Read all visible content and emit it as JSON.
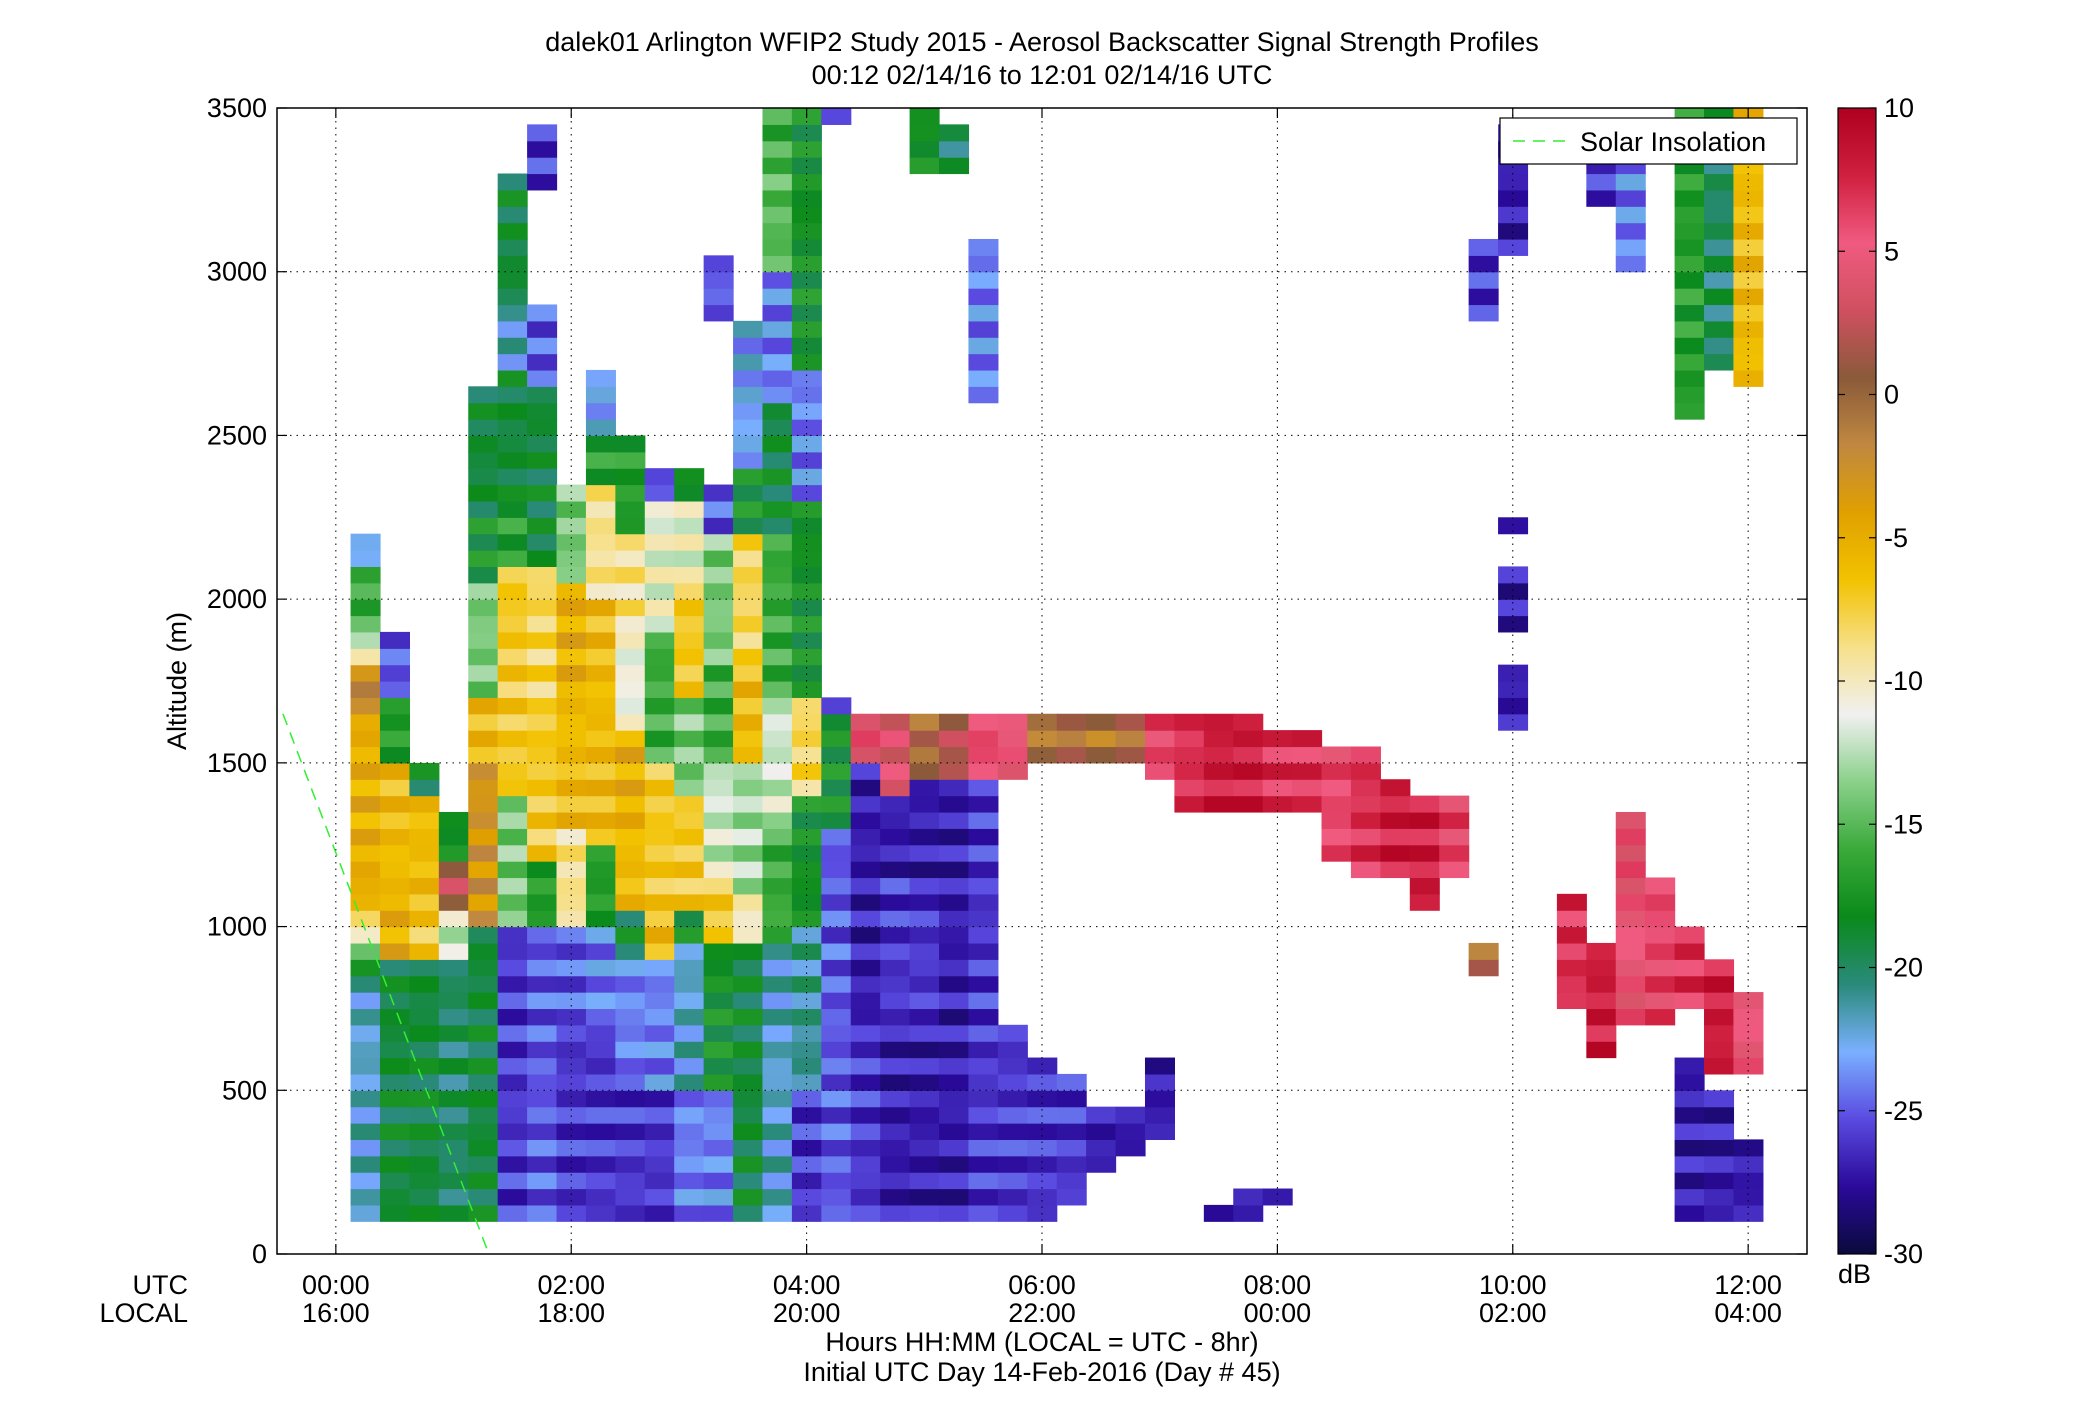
{
  "chart_data": {
    "type": "heatmap",
    "title": "dalek01 Arlington WFIP2 Study 2015 - Aerosol Backscatter Signal Strength Profiles",
    "subtitle": "00:12 02/14/16 to 12:01 02/14/16  UTC",
    "ylabel": "Altitude (m)",
    "xlabel": "Hours HH:MM  (LOCAL = UTC - 8hr)",
    "xlabel2": "Initial UTC Day 14-Feb-2016 (Day # 45)",
    "x_row_labels": [
      "UTC",
      "LOCAL"
    ],
    "ylim": [
      0,
      3500
    ],
    "xlim_hours": [
      -0.5,
      12.5
    ],
    "y_ticks": [
      0,
      500,
      1000,
      1500,
      2000,
      2500,
      3000,
      3500
    ],
    "x_ticks_hours": [
      0,
      2,
      4,
      6,
      8,
      10,
      12
    ],
    "x_tick_labels_utc": [
      "00:00",
      "02:00",
      "04:00",
      "06:00",
      "08:00",
      "10:00",
      "12:00"
    ],
    "x_tick_labels_local": [
      "16:00",
      "18:00",
      "20:00",
      "22:00",
      "00:00",
      "02:00",
      "04:00"
    ],
    "grid": true,
    "legend": {
      "entries": [
        "Solar Insolation"
      ],
      "placement": "top-right"
    },
    "colorbar": {
      "range": [
        -30,
        10
      ],
      "ticks": [
        10,
        5,
        0,
        -5,
        -10,
        -15,
        -20,
        -25,
        -30
      ],
      "unit": "dB",
      "colors": [
        "#0a0a3c",
        "#2a0a9a",
        "#5a4ae0",
        "#7ab0ff",
        "#2a8a7a",
        "#0a8a1a",
        "#3aaa3a",
        "#8ad08a",
        "#f0f0f0",
        "#f7e08a",
        "#f2c200",
        "#e0a000",
        "#c08840",
        "#8a5a3a",
        "#d05060",
        "#f05a80",
        "#d02040",
        "#b00020"
      ]
    },
    "solar_insolation": {
      "x_hours": [
        -0.45,
        1.3
      ],
      "y_m": [
        1650,
        0
      ]
    },
    "cell_size": {
      "dx_hours": 0.25,
      "dy_m": 50
    },
    "columns": [
      {
        "t": 0.25,
        "segs": [
          [
            100,
            850,
            -22
          ],
          [
            850,
            950,
            -16
          ],
          [
            950,
            1050,
            -9
          ],
          [
            1050,
            1650,
            -5
          ],
          [
            1650,
            1800,
            -2
          ],
          [
            1800,
            1900,
            -11
          ],
          [
            1900,
            2100,
            -16
          ],
          [
            2100,
            2200,
            -23
          ]
        ]
      },
      {
        "t": 0.5,
        "segs": [
          [
            100,
            900,
            -19
          ],
          [
            900,
            1100,
            -5
          ],
          [
            1100,
            1500,
            -6
          ],
          [
            1500,
            1700,
            -17
          ],
          [
            1700,
            1900,
            -25
          ]
        ]
      },
      {
        "t": 0.75,
        "segs": [
          [
            100,
            900,
            -19
          ],
          [
            900,
            1050,
            -7
          ],
          [
            1050,
            1400,
            -6
          ],
          [
            1400,
            1500,
            -19
          ]
        ]
      },
      {
        "t": 1.0,
        "segs": [
          [
            100,
            900,
            -20
          ],
          [
            900,
            1050,
            -12
          ],
          [
            1050,
            1200,
            2
          ],
          [
            1200,
            1350,
            -18
          ]
        ]
      },
      {
        "t": 1.25,
        "segs": [
          [
            100,
            1000,
            -19
          ],
          [
            1000,
            1500,
            -3
          ],
          [
            1500,
            1700,
            -6
          ],
          [
            1700,
            2050,
            -14
          ],
          [
            2050,
            2250,
            -18
          ],
          [
            2250,
            2650,
            -19
          ]
        ]
      },
      {
        "t": 1.5,
        "segs": [
          [
            100,
            1000,
            -26
          ],
          [
            1000,
            1400,
            -14
          ],
          [
            1400,
            1750,
            -7
          ],
          [
            1750,
            2100,
            -7
          ],
          [
            2100,
            2300,
            -17
          ],
          [
            2300,
            2700,
            -19
          ],
          [
            2700,
            2900,
            -22
          ],
          [
            2900,
            3300,
            -19
          ]
        ]
      },
      {
        "t": 1.75,
        "segs": [
          [
            100,
            1000,
            -25
          ],
          [
            1000,
            1200,
            -17
          ],
          [
            1200,
            1650,
            -7
          ],
          [
            1650,
            2100,
            -8
          ],
          [
            2100,
            2650,
            -19
          ],
          [
            2650,
            2900,
            -25
          ],
          [
            3250,
            3450,
            -26
          ]
        ]
      },
      {
        "t": 2.0,
        "segs": [
          [
            100,
            700,
            -26
          ],
          [
            700,
            1000,
            -25
          ],
          [
            1000,
            1300,
            -9
          ],
          [
            1300,
            1700,
            -6
          ],
          [
            1700,
            2050,
            -5
          ],
          [
            2050,
            2350,
            -14
          ]
        ]
      },
      {
        "t": 2.25,
        "segs": [
          [
            100,
            700,
            -26
          ],
          [
            700,
            1000,
            -24
          ],
          [
            1000,
            1250,
            -17
          ],
          [
            1250,
            2000,
            -6
          ],
          [
            2000,
            2350,
            -9
          ],
          [
            2350,
            2500,
            -17
          ],
          [
            2500,
            2700,
            -23
          ]
        ]
      },
      {
        "t": 2.5,
        "segs": [
          [
            100,
            550,
            -26
          ],
          [
            550,
            900,
            -24
          ],
          [
            900,
            1050,
            -19
          ],
          [
            1050,
            1300,
            -6
          ],
          [
            1300,
            1600,
            -5
          ],
          [
            1600,
            1900,
            -11
          ],
          [
            1900,
            2200,
            -9
          ],
          [
            2200,
            2500,
            -17
          ]
        ]
      },
      {
        "t": 2.75,
        "segs": [
          [
            100,
            500,
            -26
          ],
          [
            500,
            900,
            -24
          ],
          [
            900,
            1050,
            -6
          ],
          [
            1050,
            1500,
            -7
          ],
          [
            1500,
            1900,
            -16
          ],
          [
            1900,
            2300,
            -11
          ],
          [
            2300,
            2400,
            -25
          ]
        ]
      },
      {
        "t": 3.0,
        "segs": [
          [
            100,
            500,
            -24
          ],
          [
            500,
            950,
            -22
          ],
          [
            950,
            1050,
            -18
          ],
          [
            1050,
            1400,
            -7
          ],
          [
            1400,
            1700,
            -14
          ],
          [
            1700,
            2050,
            -7
          ],
          [
            2050,
            2300,
            -11
          ],
          [
            2300,
            2400,
            -18
          ]
        ]
      },
      {
        "t": 3.25,
        "segs": [
          [
            100,
            500,
            -24
          ],
          [
            500,
            950,
            -18
          ],
          [
            950,
            1150,
            -7
          ],
          [
            1150,
            1500,
            -12
          ],
          [
            1500,
            1800,
            -16
          ],
          [
            1800,
            2200,
            -14
          ],
          [
            2200,
            2350,
            -25
          ],
          [
            2850,
            3050,
            -25
          ]
        ]
      },
      {
        "t": 3.5,
        "segs": [
          [
            100,
            500,
            -19
          ],
          [
            500,
            950,
            -19
          ],
          [
            950,
            1100,
            -10
          ],
          [
            1100,
            1500,
            -13
          ],
          [
            1500,
            1800,
            -6
          ],
          [
            1800,
            2200,
            -8
          ],
          [
            2200,
            2400,
            -18
          ],
          [
            2400,
            2850,
            -23
          ]
        ]
      },
      {
        "t": 3.75,
        "segs": [
          [
            100,
            500,
            -22
          ],
          [
            500,
            950,
            -22
          ],
          [
            950,
            1300,
            -16
          ],
          [
            1300,
            1700,
            -12
          ],
          [
            1700,
            2200,
            -16
          ],
          [
            2200,
            2600,
            -19
          ],
          [
            2600,
            3000,
            -24
          ],
          [
            3000,
            3350,
            -15
          ],
          [
            3350,
            3500,
            -16
          ]
        ]
      },
      {
        "t": 4.0,
        "segs": [
          [
            100,
            500,
            -26
          ],
          [
            500,
            1000,
            -21
          ],
          [
            1000,
            1400,
            -18
          ],
          [
            1400,
            1700,
            -8
          ],
          [
            1700,
            2300,
            -18
          ],
          [
            2300,
            2700,
            -24
          ],
          [
            2700,
            3500,
            -18
          ]
        ]
      },
      {
        "t": 4.25,
        "segs": [
          [
            100,
            1300,
            -25
          ],
          [
            1300,
            1650,
            -18
          ],
          [
            1650,
            1700,
            -26
          ],
          [
            3450,
            3500,
            -27
          ]
        ]
      },
      {
        "t": 4.5,
        "segs": [
          [
            100,
            700,
            -26
          ],
          [
            700,
            1250,
            -27
          ],
          [
            1250,
            1500,
            -27
          ],
          [
            1500,
            1650,
            5
          ]
        ]
      },
      {
        "t": 4.75,
        "segs": [
          [
            100,
            700,
            -27
          ],
          [
            700,
            1150,
            -26
          ],
          [
            1150,
            1400,
            -27
          ],
          [
            1400,
            1650,
            4
          ]
        ]
      },
      {
        "t": 5.0,
        "segs": [
          [
            100,
            700,
            -27
          ],
          [
            700,
            1100,
            -26
          ],
          [
            1100,
            1450,
            -27
          ],
          [
            1450,
            1650,
            0
          ],
          [
            3300,
            3500,
            -18
          ]
        ]
      },
      {
        "t": 5.25,
        "segs": [
          [
            100,
            800,
            -27
          ],
          [
            800,
            1450,
            -27
          ],
          [
            1450,
            1650,
            2
          ],
          [
            3300,
            3450,
            -20
          ]
        ]
      },
      {
        "t": 5.5,
        "segs": [
          [
            100,
            800,
            -26
          ],
          [
            800,
            1450,
            -26
          ],
          [
            1450,
            1650,
            6
          ],
          [
            2600,
            3100,
            -24
          ]
        ]
      },
      {
        "t": 5.75,
        "segs": [
          [
            100,
            700,
            -26
          ],
          [
            1450,
            1650,
            5
          ]
        ]
      },
      {
        "t": 6.0,
        "segs": [
          [
            100,
            600,
            -26
          ],
          [
            1500,
            1650,
            -1
          ]
        ]
      },
      {
        "t": 6.25,
        "segs": [
          [
            150,
            550,
            -26
          ],
          [
            1500,
            1650,
            0
          ]
        ]
      },
      {
        "t": 6.5,
        "segs": [
          [
            250,
            450,
            -27
          ],
          [
            1500,
            1650,
            -1
          ]
        ]
      },
      {
        "t": 6.75,
        "segs": [
          [
            300,
            450,
            -27
          ],
          [
            1500,
            1650,
            0
          ]
        ]
      },
      {
        "t": 7.0,
        "segs": [
          [
            350,
            600,
            -27
          ],
          [
            1450,
            1650,
            6
          ]
        ]
      },
      {
        "t": 7.25,
        "segs": [
          [
            1350,
            1650,
            7
          ]
        ]
      },
      {
        "t": 7.5,
        "segs": [
          [
            100,
            150,
            -27
          ],
          [
            1350,
            1650,
            8
          ]
        ]
      },
      {
        "t": 7.75,
        "segs": [
          [
            100,
            200,
            -27
          ],
          [
            1350,
            1650,
            8
          ]
        ]
      },
      {
        "t": 8.0,
        "segs": [
          [
            150,
            200,
            -27
          ],
          [
            1350,
            1600,
            7
          ]
        ]
      },
      {
        "t": 8.25,
        "segs": [
          [
            1350,
            1600,
            7
          ]
        ]
      },
      {
        "t": 8.5,
        "segs": [
          [
            1200,
            1550,
            6
          ]
        ]
      },
      {
        "t": 8.75,
        "segs": [
          [
            1150,
            1550,
            7
          ]
        ]
      },
      {
        "t": 9.0,
        "segs": [
          [
            1150,
            1450,
            8
          ]
        ]
      },
      {
        "t": 9.25,
        "segs": [
          [
            1050,
            1400,
            8
          ]
        ]
      },
      {
        "t": 9.5,
        "segs": [
          [
            1150,
            1400,
            6
          ]
        ]
      },
      {
        "t": 9.75,
        "segs": [
          [
            850,
            950,
            0
          ],
          [
            2850,
            3100,
            -26
          ]
        ]
      },
      {
        "t": 10.0,
        "segs": [
          [
            1600,
            1800,
            -27
          ],
          [
            1900,
            2100,
            -27
          ],
          [
            2200,
            2250,
            -27
          ],
          [
            3050,
            3450,
            -27
          ]
        ]
      },
      {
        "t": 10.5,
        "segs": [
          [
            750,
            1100,
            7
          ]
        ]
      },
      {
        "t": 10.75,
        "segs": [
          [
            600,
            950,
            8
          ],
          [
            3200,
            3450,
            -26
          ]
        ]
      },
      {
        "t": 11.0,
        "segs": [
          [
            700,
            1350,
            5
          ],
          [
            3000,
            3450,
            -24
          ]
        ]
      },
      {
        "t": 11.25,
        "segs": [
          [
            700,
            1150,
            6
          ]
        ]
      },
      {
        "t": 11.5,
        "segs": [
          [
            100,
            600,
            -27
          ],
          [
            750,
            1000,
            7
          ],
          [
            2550,
            3500,
            -17
          ]
        ]
      },
      {
        "t": 11.75,
        "segs": [
          [
            100,
            500,
            -27
          ],
          [
            550,
            900,
            8
          ],
          [
            2700,
            3500,
            -20
          ]
        ]
      },
      {
        "t": 12.0,
        "segs": [
          [
            100,
            350,
            -27
          ],
          [
            550,
            800,
            5
          ],
          [
            2650,
            3500,
            -6
          ]
        ]
      }
    ]
  }
}
